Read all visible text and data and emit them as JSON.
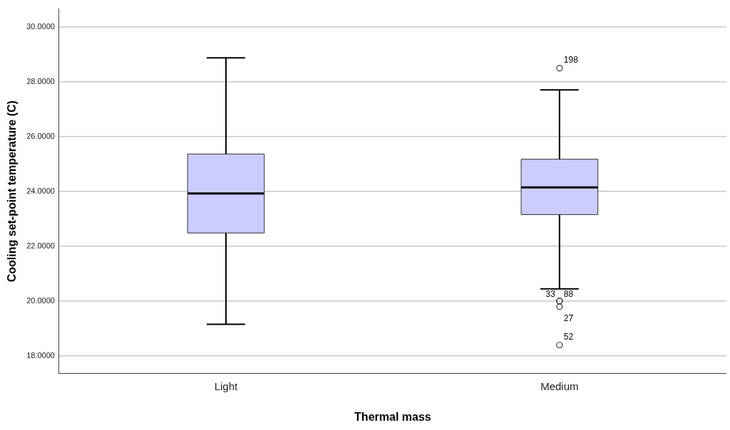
{
  "chart_data": {
    "type": "box",
    "xlabel": "Thermal mass",
    "ylabel": "Cooling set-point temperature (C)",
    "categories": [
      "Light",
      "Medium"
    ],
    "boxes": [
      {
        "low": 19.15,
        "q1": 22.48,
        "median": 23.92,
        "q3": 25.36,
        "high": 28.87
      },
      {
        "low": 20.44,
        "q1": 23.15,
        "median": 24.14,
        "q3": 25.17,
        "high": 27.7,
        "outliers": [
          28.49,
          20.0,
          20.0,
          19.79,
          18.39
        ]
      }
    ],
    "color": "#ccccff",
    "ylim": [
      17.35,
      30.65
    ],
    "yticks": [
      {
        "value": 18,
        "label": "18.0000"
      },
      {
        "value": 20,
        "label": "20.0000"
      },
      {
        "value": 22,
        "label": "22.0000"
      },
      {
        "value": 24,
        "label": "24.0000"
      },
      {
        "value": 26,
        "label": "26.0000"
      },
      {
        "value": 28,
        "label": "28.0000"
      },
      {
        "value": 30,
        "label": "30.0000"
      }
    ],
    "grid": "y",
    "annotations": [
      "198",
      "33",
      "88",
      "27",
      "52"
    ]
  }
}
